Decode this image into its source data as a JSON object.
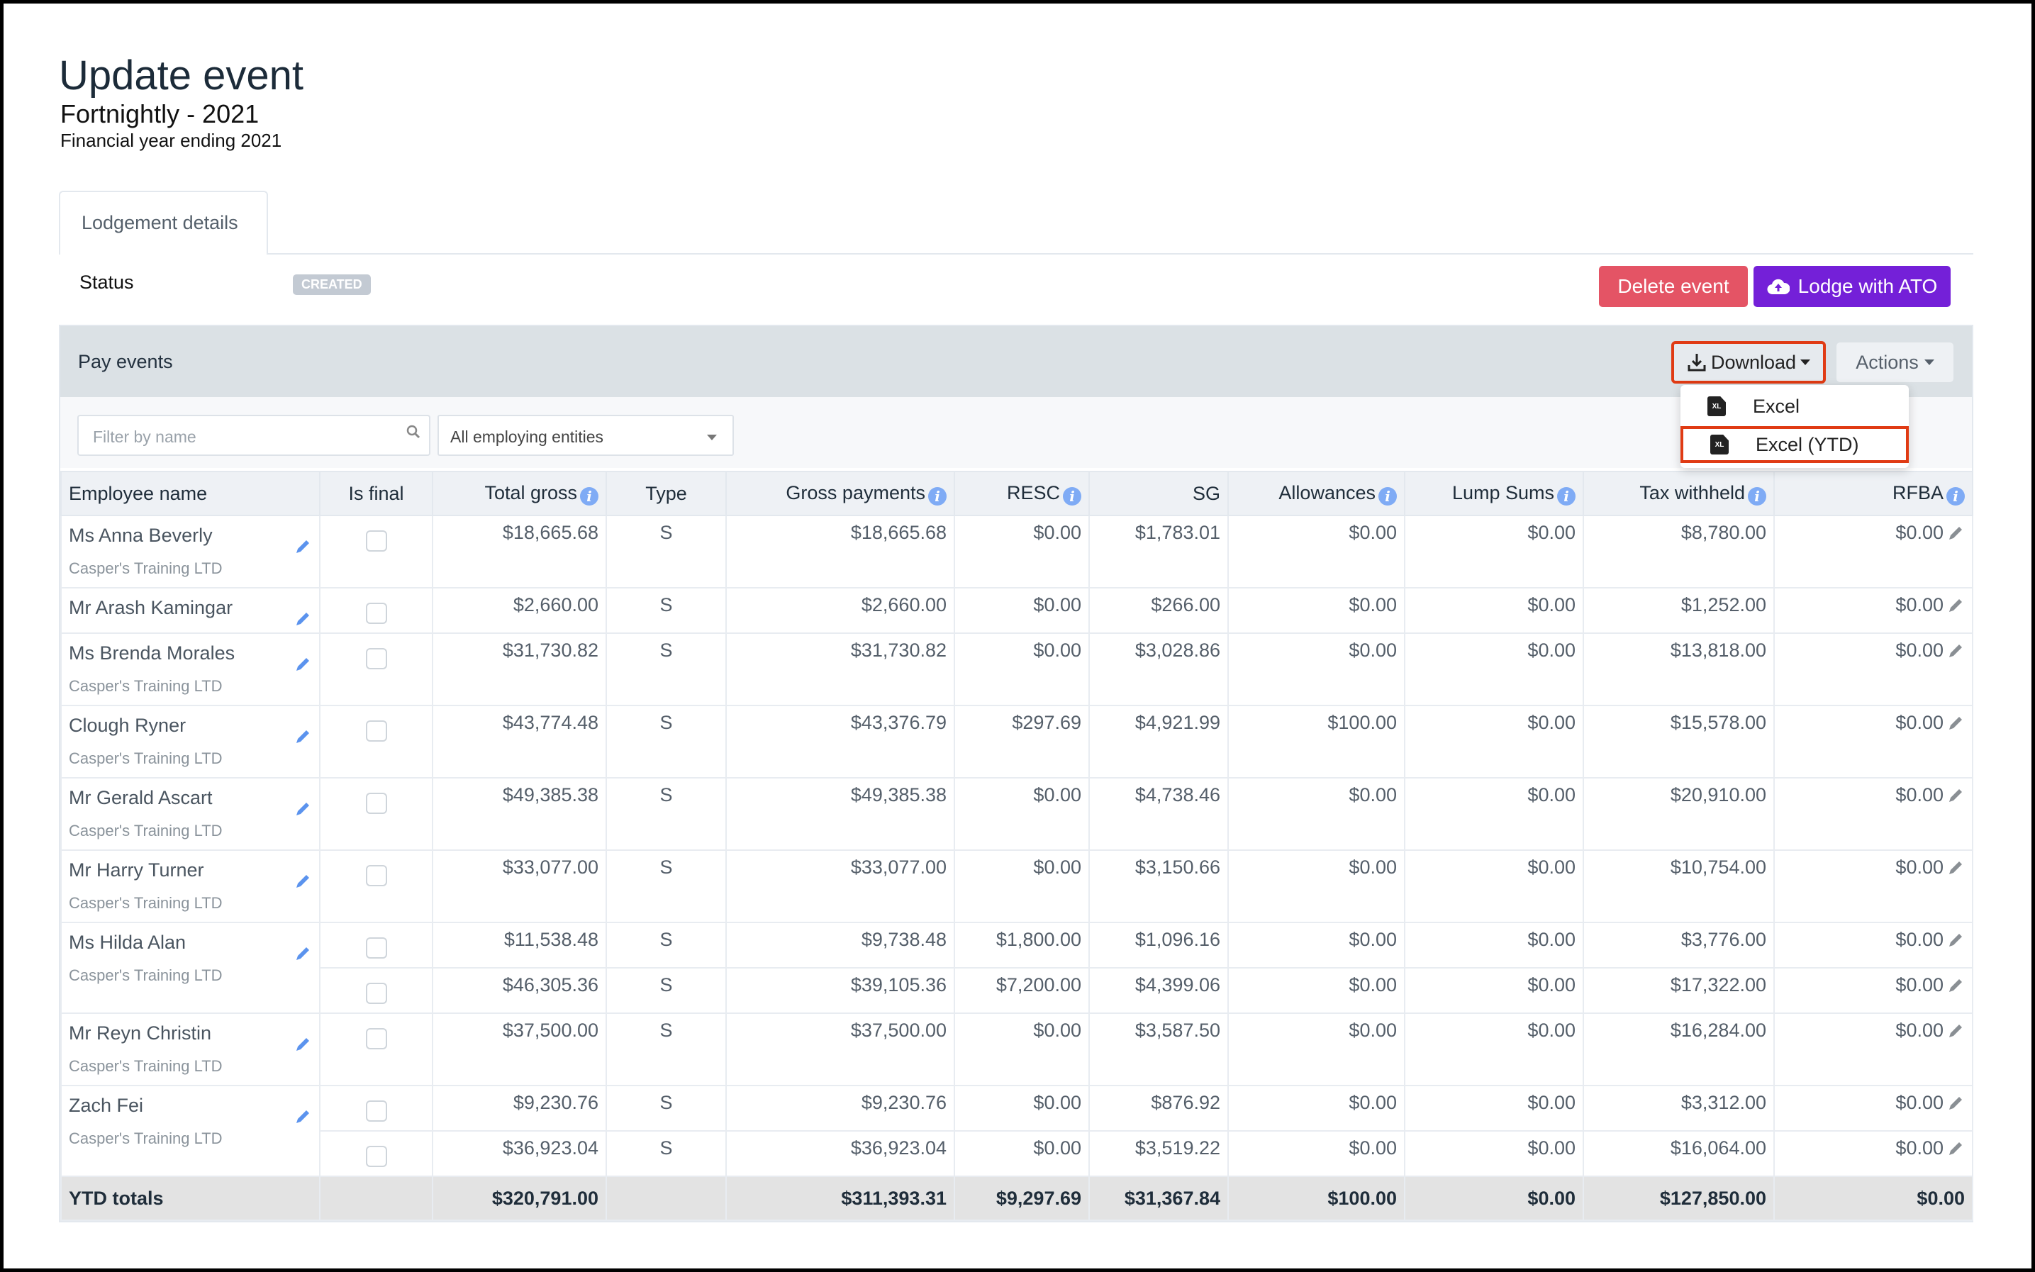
{
  "header": {
    "title": "Update event",
    "subtitle": "Fortnightly - 2021",
    "financial_year": "Financial year ending 2021"
  },
  "tabs": [
    {
      "label": "Lodgement details",
      "active": true
    }
  ],
  "status": {
    "label": "Status",
    "badge": "CREATED"
  },
  "buttons": {
    "delete": "Delete event",
    "lodge": "Lodge with ATO"
  },
  "colors": {
    "delete": "#e45465",
    "lodge": "#7420d8",
    "highlight": "#e03b14",
    "info": "#7fabf5"
  },
  "pay_events": {
    "title": "Pay events",
    "download": "Download",
    "actions": "Actions",
    "download_menu": [
      {
        "label": "Excel",
        "icon": "excel-file-icon"
      },
      {
        "label": "Excel (YTD)",
        "icon": "excel-file-icon",
        "highlighted": true
      }
    ],
    "filter_placeholder": "Filter by name",
    "entity_select": "All employing entities"
  },
  "table": {
    "columns": [
      {
        "label": "Employee name"
      },
      {
        "label": "Is final"
      },
      {
        "label": "Total gross",
        "info": true
      },
      {
        "label": "Type"
      },
      {
        "label": "Gross payments",
        "info": true
      },
      {
        "label": "RESC",
        "info": true
      },
      {
        "label": "SG"
      },
      {
        "label": "Allowances",
        "info": true
      },
      {
        "label": "Lump Sums",
        "info": true
      },
      {
        "label": "Tax withheld",
        "info": true
      },
      {
        "label": "RFBA",
        "info": true
      }
    ],
    "employees": [
      {
        "name": "Ms Anna Beverly",
        "entity": "Casper's Training LTD",
        "rows": [
          [
            "$18,665.68",
            "S",
            "$18,665.68",
            "$0.00",
            "$1,783.01",
            "$0.00",
            "$0.00",
            "$8,780.00",
            "$0.00"
          ]
        ]
      },
      {
        "name": "Mr Arash Kamingar",
        "entity": "",
        "rows": [
          [
            "$2,660.00",
            "S",
            "$2,660.00",
            "$0.00",
            "$266.00",
            "$0.00",
            "$0.00",
            "$1,252.00",
            "$0.00"
          ]
        ]
      },
      {
        "name": "Ms Brenda Morales",
        "entity": "Casper's Training LTD",
        "rows": [
          [
            "$31,730.82",
            "S",
            "$31,730.82",
            "$0.00",
            "$3,028.86",
            "$0.00",
            "$0.00",
            "$13,818.00",
            "$0.00"
          ]
        ]
      },
      {
        "name": "Clough Ryner",
        "entity": "Casper's Training LTD",
        "rows": [
          [
            "$43,774.48",
            "S",
            "$43,376.79",
            "$297.69",
            "$4,921.99",
            "$100.00",
            "$0.00",
            "$15,578.00",
            "$0.00"
          ]
        ]
      },
      {
        "name": "Mr Gerald Ascart",
        "entity": "Casper's Training LTD",
        "rows": [
          [
            "$49,385.38",
            "S",
            "$49,385.38",
            "$0.00",
            "$4,738.46",
            "$0.00",
            "$0.00",
            "$20,910.00",
            "$0.00"
          ]
        ]
      },
      {
        "name": "Mr Harry Turner",
        "entity": "Casper's Training LTD",
        "rows": [
          [
            "$33,077.00",
            "S",
            "$33,077.00",
            "$0.00",
            "$3,150.66",
            "$0.00",
            "$0.00",
            "$10,754.00",
            "$0.00"
          ]
        ]
      },
      {
        "name": "Ms Hilda Alan",
        "entity": "Casper's Training LTD",
        "rows": [
          [
            "$11,538.48",
            "S",
            "$9,738.48",
            "$1,800.00",
            "$1,096.16",
            "$0.00",
            "$0.00",
            "$3,776.00",
            "$0.00"
          ],
          [
            "$46,305.36",
            "S",
            "$39,105.36",
            "$7,200.00",
            "$4,399.06",
            "$0.00",
            "$0.00",
            "$17,322.00",
            "$0.00"
          ]
        ]
      },
      {
        "name": "Mr Reyn Christin",
        "entity": "Casper's Training LTD",
        "rows": [
          [
            "$37,500.00",
            "S",
            "$37,500.00",
            "$0.00",
            "$3,587.50",
            "$0.00",
            "$0.00",
            "$16,284.00",
            "$0.00"
          ]
        ]
      },
      {
        "name": "Zach Fei",
        "entity": "Casper's Training LTD",
        "rows": [
          [
            "$9,230.76",
            "S",
            "$9,230.76",
            "$0.00",
            "$876.92",
            "$0.00",
            "$0.00",
            "$3,312.00",
            "$0.00"
          ],
          [
            "$36,923.04",
            "S",
            "$36,923.04",
            "$0.00",
            "$3,519.22",
            "$0.00",
            "$0.00",
            "$16,064.00",
            "$0.00"
          ]
        ]
      }
    ],
    "totals": {
      "label": "YTD totals",
      "values": [
        "$320,791.00",
        "",
        "$311,393.31",
        "$9,297.69",
        "$31,367.84",
        "$100.00",
        "$0.00",
        "$127,850.00",
        "$0.00"
      ]
    }
  }
}
